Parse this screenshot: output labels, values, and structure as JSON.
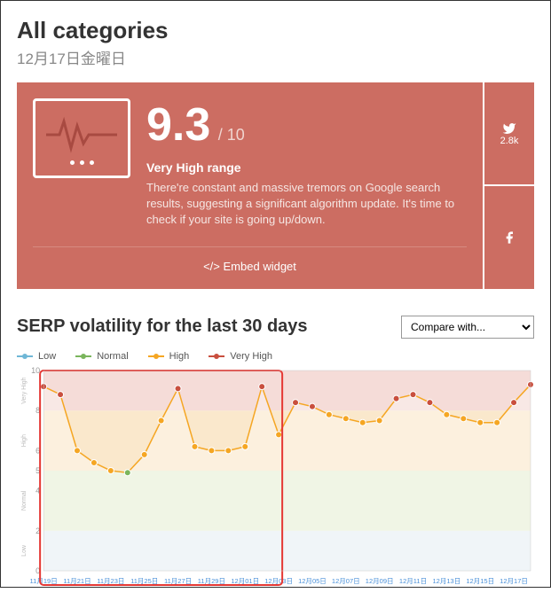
{
  "header": {
    "title": "All categories",
    "subtitle": "12月17日金曜日"
  },
  "card": {
    "score": "9.3",
    "score_max": "/ 10",
    "range": "Very High range",
    "description": "There're constant and massive tremors on Google search results, suggesting a significant algorithm update. It's time to check if your site is going up/down.",
    "embed_label": "Embed widget",
    "bg_color": "#cc6d62"
  },
  "social": {
    "twitter_count": "2.8k"
  },
  "chart": {
    "title": "SERP volatility for the last 30 days",
    "compare_placeholder": "Compare with...",
    "legend": {
      "low": "Low",
      "normal": "Normal",
      "high": "High",
      "very_high": "Very High"
    },
    "type": "line-area",
    "ylim": [
      0,
      10
    ],
    "yticks": [
      0,
      2,
      4,
      5,
      6,
      8,
      10
    ],
    "y_band_labels": [
      "Low",
      "Normal",
      "High",
      "Very High"
    ],
    "bands": [
      {
        "from": 0,
        "to": 2,
        "color": "#e8f0f4"
      },
      {
        "from": 2,
        "to": 5,
        "color": "#e8f0d8"
      },
      {
        "from": 5,
        "to": 8,
        "color": "#fae8cc"
      },
      {
        "from": 8,
        "to": 10,
        "color": "#f5dcd8"
      }
    ],
    "legend_colors": {
      "low": "#6fb7d6",
      "normal": "#7ab55c",
      "high": "#f5a623",
      "very_high": "#c94f3e"
    },
    "line_color": "#f5a623",
    "highlight_box": {
      "from_idx": 0,
      "to_idx": 14,
      "color": "#e53935"
    },
    "x_labels": [
      "11月19日",
      "11月21日",
      "11月23日",
      "11月25日",
      "11月27日",
      "11月29日",
      "12月01日",
      "12月03日",
      "12月05日",
      "12月07日",
      "12月09日",
      "12月11日",
      "12月13日",
      "12月15日",
      "12月17日"
    ],
    "points": [
      {
        "v": 9.2,
        "cat": "very_high"
      },
      {
        "v": 8.8,
        "cat": "very_high"
      },
      {
        "v": 6.0,
        "cat": "high"
      },
      {
        "v": 5.4,
        "cat": "high"
      },
      {
        "v": 5.0,
        "cat": "high"
      },
      {
        "v": 4.9,
        "cat": "normal"
      },
      {
        "v": 5.8,
        "cat": "high"
      },
      {
        "v": 7.5,
        "cat": "high"
      },
      {
        "v": 9.1,
        "cat": "very_high"
      },
      {
        "v": 6.2,
        "cat": "high"
      },
      {
        "v": 6.0,
        "cat": "high"
      },
      {
        "v": 6.0,
        "cat": "high"
      },
      {
        "v": 6.2,
        "cat": "high"
      },
      {
        "v": 9.2,
        "cat": "very_high"
      },
      {
        "v": 6.8,
        "cat": "high"
      },
      {
        "v": 8.4,
        "cat": "very_high"
      },
      {
        "v": 8.2,
        "cat": "very_high"
      },
      {
        "v": 7.8,
        "cat": "high"
      },
      {
        "v": 7.6,
        "cat": "high"
      },
      {
        "v": 7.4,
        "cat": "high"
      },
      {
        "v": 7.5,
        "cat": "high"
      },
      {
        "v": 8.6,
        "cat": "very_high"
      },
      {
        "v": 8.8,
        "cat": "very_high"
      },
      {
        "v": 8.4,
        "cat": "very_high"
      },
      {
        "v": 7.8,
        "cat": "high"
      },
      {
        "v": 7.6,
        "cat": "high"
      },
      {
        "v": 7.4,
        "cat": "high"
      },
      {
        "v": 7.4,
        "cat": "high"
      },
      {
        "v": 8.4,
        "cat": "very_high"
      },
      {
        "v": 9.3,
        "cat": "very_high"
      }
    ]
  }
}
